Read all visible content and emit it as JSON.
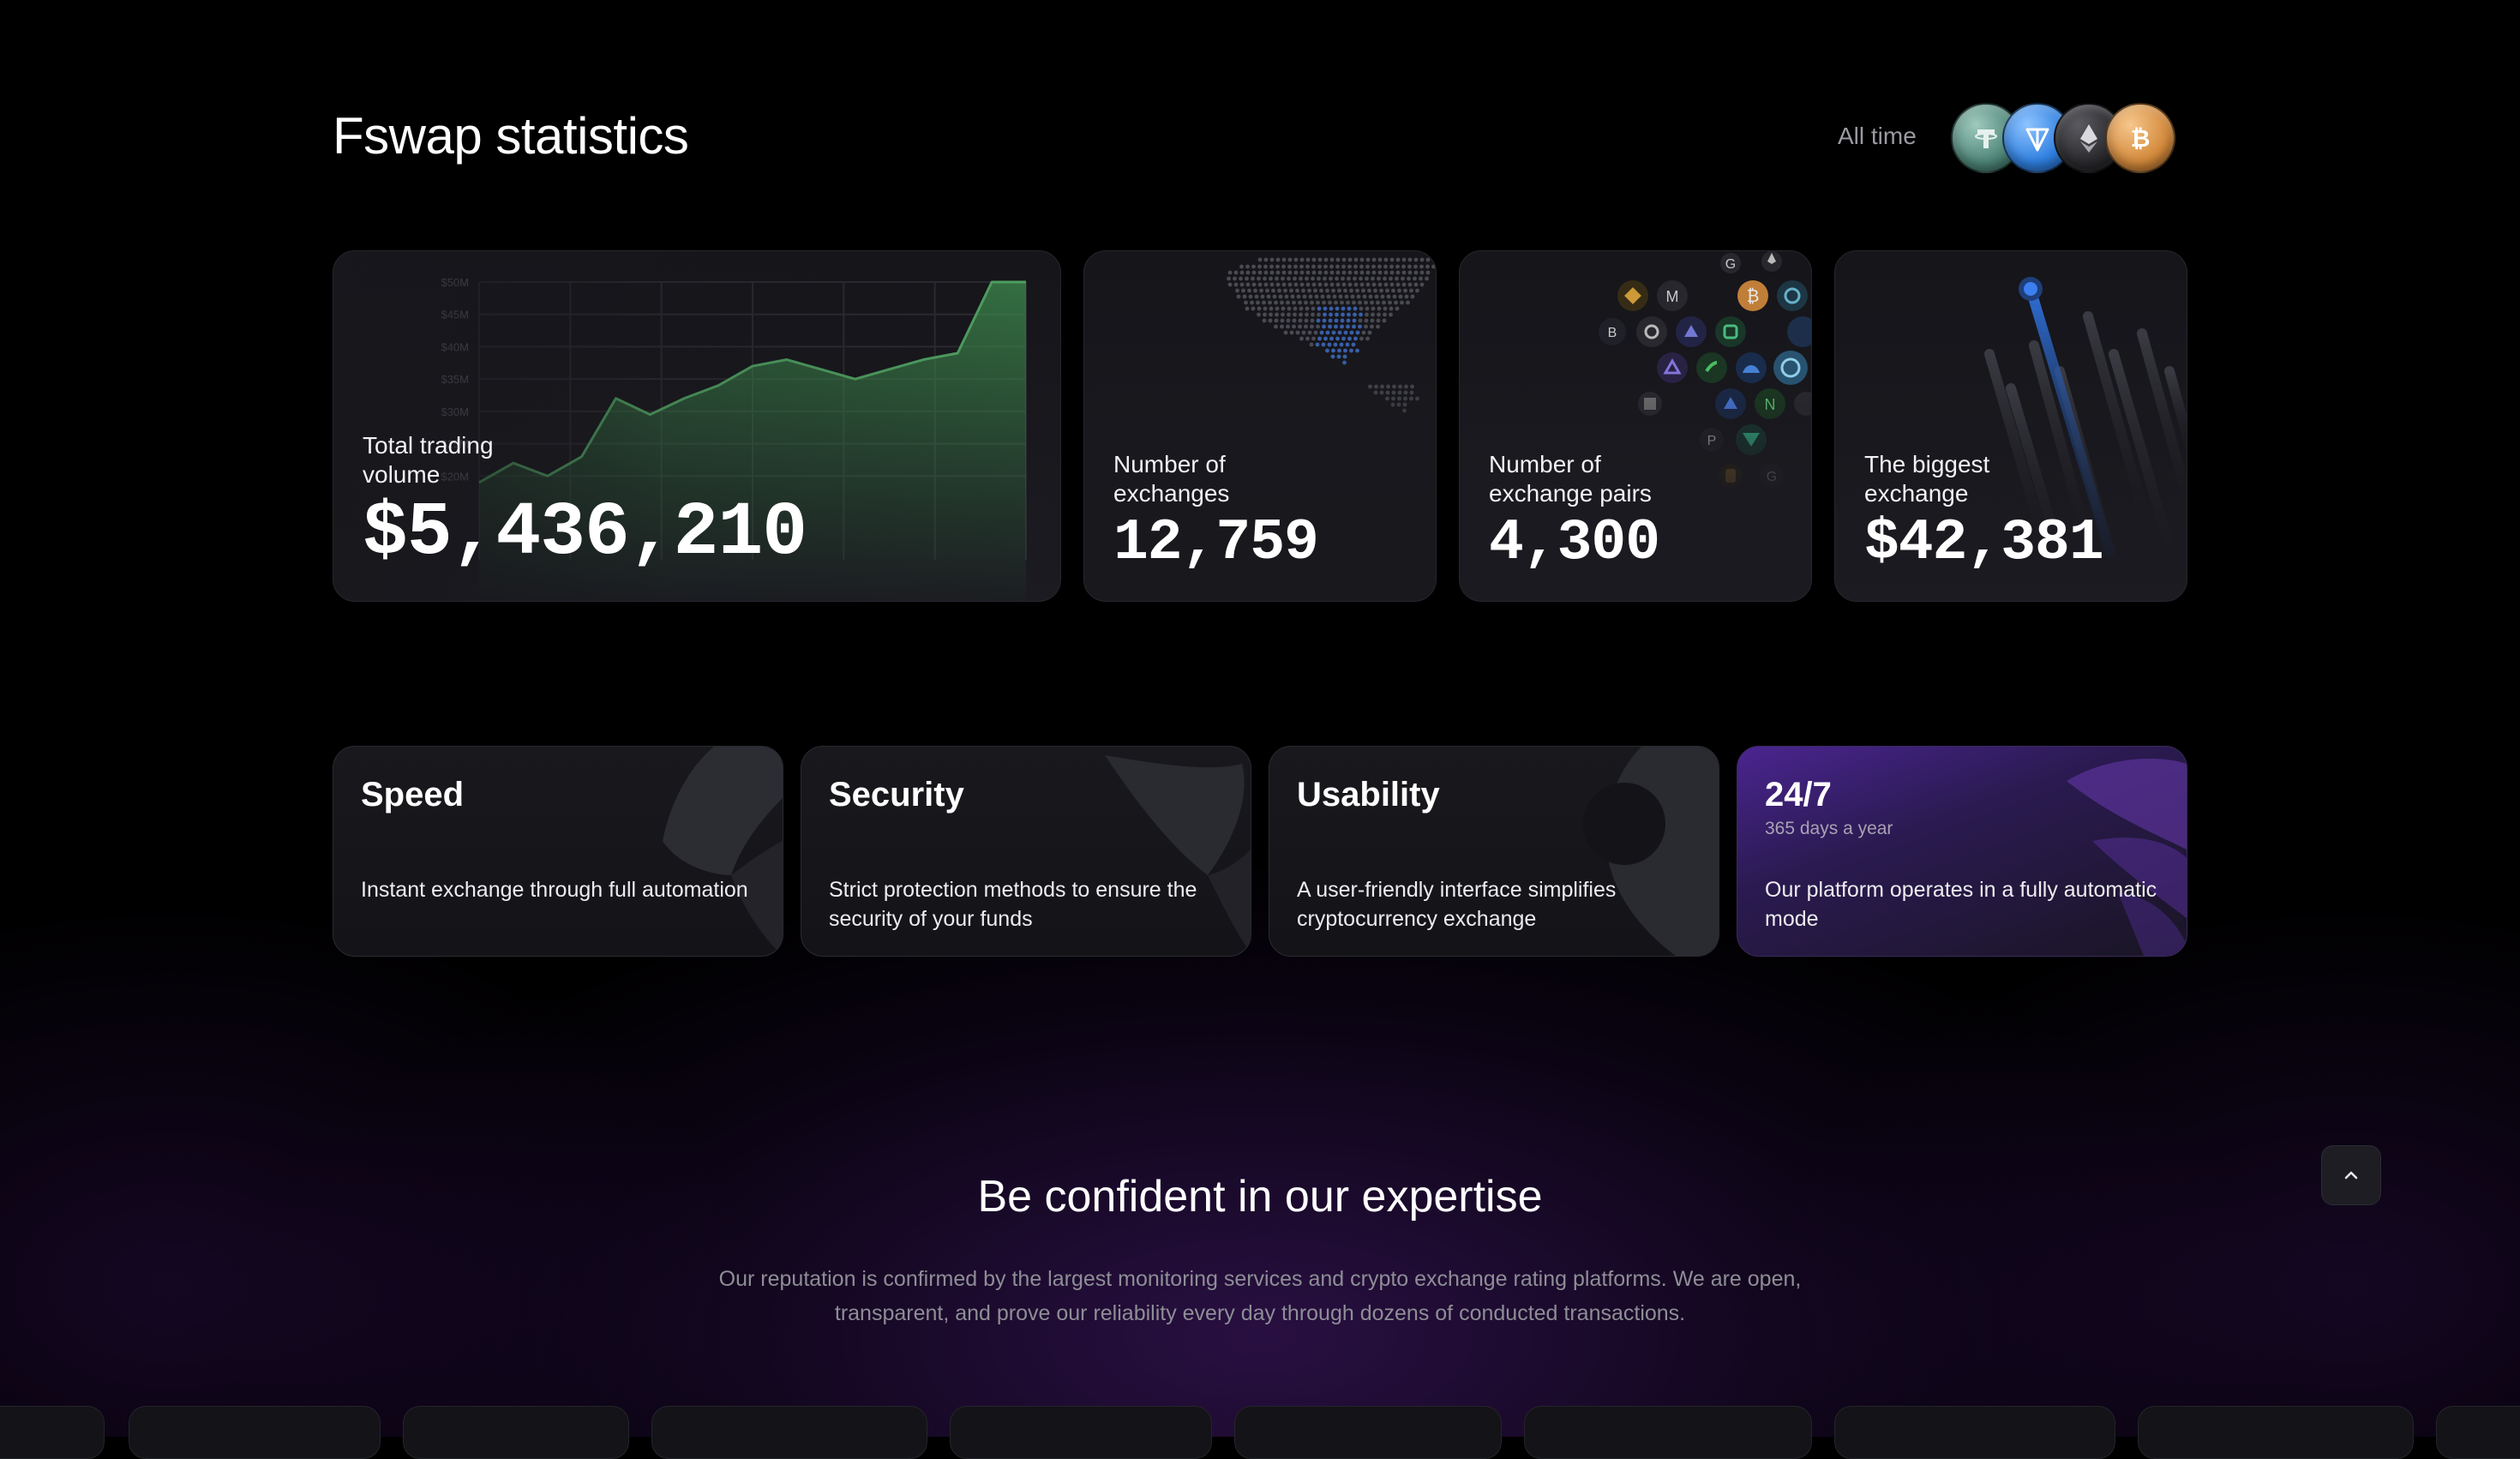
{
  "header": {
    "title": "Fswap statistics",
    "period_label": "All time",
    "coins": [
      {
        "name": "tether",
        "icon": "tether-icon",
        "color": "#5f9a8c"
      },
      {
        "name": "ton",
        "icon": "ton-icon",
        "color": "#3b8ee0"
      },
      {
        "name": "ethereum",
        "icon": "ethereum-icon",
        "color": "#2a2a2e"
      },
      {
        "name": "bitcoin",
        "icon": "bitcoin-icon",
        "color": "#d38a3c"
      }
    ]
  },
  "stats": {
    "volume": {
      "label": "Total trading\nvolume",
      "value": "$5,436,210"
    },
    "exchanges": {
      "label": "Number of\nexchanges",
      "value": "12,759"
    },
    "pairs": {
      "label": "Number of\nexchange pairs",
      "value": "4,300"
    },
    "biggest": {
      "label": "The biggest\nexchange",
      "value": "$42,381"
    }
  },
  "chart_data": {
    "type": "area",
    "title": "",
    "xlabel": "",
    "ylabel": "",
    "y_tick_labels": [
      "$50M",
      "$45M",
      "$40M",
      "$35M",
      "$30M",
      "$25M",
      "$20M"
    ],
    "ylim": [
      15,
      50
    ],
    "grid": true,
    "x": [
      0,
      1,
      2,
      3,
      4,
      5,
      6,
      7,
      8,
      9,
      10,
      11,
      12,
      13,
      14,
      15,
      16
    ],
    "values": [
      19,
      22,
      20,
      23,
      32,
      29.5,
      32,
      34,
      37,
      38,
      36.5,
      35,
      36.5,
      38,
      39,
      50,
      50
    ],
    "color": "#3f8f4f"
  },
  "features": [
    {
      "title": "Speed",
      "subtitle": "",
      "desc": "Instant exchange through full automation"
    },
    {
      "title": "Security",
      "subtitle": "",
      "desc": "Strict protection methods to ensure the security of your funds"
    },
    {
      "title": "Usability",
      "subtitle": "",
      "desc": "A user-friendly interface simplifies cryptocurrency exchange"
    },
    {
      "title": "24/7",
      "subtitle": "365 days a year",
      "desc": "Our platform operates in a fully automatic mode"
    }
  ],
  "expertise": {
    "title": "Be confident in our expertise",
    "text": "Our reputation is confirmed by the largest monitoring services and crypto exchange rating platforms. We are open, transparent, and prove our reliability every day through dozens of conducted transactions."
  },
  "scroll_top": {
    "icon": "chevron-up-icon"
  },
  "colors": {
    "accent_purple": "#5a2aa8",
    "chart_green": "#3f8f4f",
    "blue_line": "#2f6fd6"
  }
}
